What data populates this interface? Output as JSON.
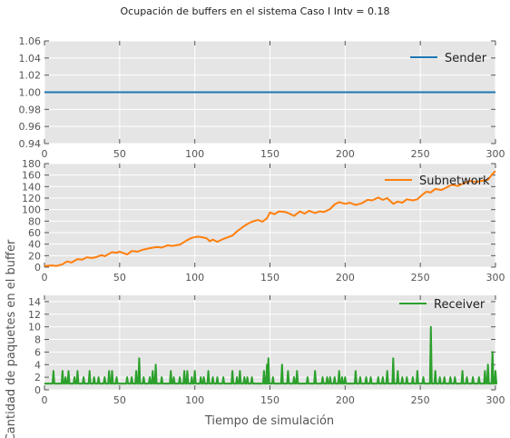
{
  "figure": {
    "title": "Ocupación de buffers en el sistema Caso I Intv = 0.18",
    "xlabel": "Tiempo de simulación",
    "ylabel": "Cantidad de paquetes en el buffer"
  },
  "chart_data": [
    {
      "type": "line",
      "series": [
        {
          "name": "Sender",
          "color": "#1f77b4",
          "values": [
            [
              0,
              1
            ],
            [
              300,
              1
            ]
          ]
        }
      ],
      "xlim": [
        0,
        300
      ],
      "ylim": [
        0.94,
        1.06
      ],
      "xticks": [
        0,
        50,
        100,
        150,
        200,
        250,
        300
      ],
      "yticks": [
        0.94,
        0.96,
        0.98,
        1.0,
        1.02,
        1.04,
        1.06
      ],
      "ytick_labels": [
        "0.94",
        "0.96",
        "0.98",
        "1.00",
        "1.02",
        "1.04",
        "1.06"
      ],
      "grid": true,
      "legend": "upper-right"
    },
    {
      "type": "line",
      "series": [
        {
          "name": "Subnetwork",
          "color": "#ff7f0e",
          "values": [
            [
              0,
              2
            ],
            [
              5,
              3
            ],
            [
              8,
              2
            ],
            [
              12,
              5
            ],
            [
              15,
              10
            ],
            [
              18,
              8
            ],
            [
              22,
              14
            ],
            [
              25,
              13
            ],
            [
              28,
              17
            ],
            [
              32,
              16
            ],
            [
              35,
              18
            ],
            [
              38,
              21
            ],
            [
              40,
              19
            ],
            [
              42,
              22
            ],
            [
              45,
              26
            ],
            [
              48,
              25
            ],
            [
              50,
              27
            ],
            [
              55,
              22
            ],
            [
              58,
              28
            ],
            [
              62,
              27
            ],
            [
              65,
              30
            ],
            [
              70,
              33
            ],
            [
              75,
              35
            ],
            [
              78,
              34
            ],
            [
              82,
              38
            ],
            [
              85,
              37
            ],
            [
              90,
              39
            ],
            [
              95,
              47
            ],
            [
              98,
              51
            ],
            [
              102,
              53
            ],
            [
              105,
              52
            ],
            [
              108,
              50
            ],
            [
              110,
              45
            ],
            [
              112,
              48
            ],
            [
              115,
              44
            ],
            [
              118,
              48
            ],
            [
              122,
              52
            ],
            [
              125,
              55
            ],
            [
              128,
              62
            ],
            [
              132,
              70
            ],
            [
              135,
              75
            ],
            [
              138,
              79
            ],
            [
              142,
              82
            ],
            [
              145,
              79
            ],
            [
              148,
              85
            ],
            [
              150,
              95
            ],
            [
              153,
              92
            ],
            [
              156,
              97
            ],
            [
              160,
              96
            ],
            [
              163,
              93
            ],
            [
              166,
              89
            ],
            [
              170,
              97
            ],
            [
              173,
              93
            ],
            [
              176,
              98
            ],
            [
              180,
              94
            ],
            [
              183,
              97
            ],
            [
              186,
              96
            ],
            [
              190,
              101
            ],
            [
              193,
              109
            ],
            [
              196,
              113
            ],
            [
              200,
              110
            ],
            [
              203,
              112
            ],
            [
              207,
              108
            ],
            [
              211,
              111
            ],
            [
              215,
              117
            ],
            [
              218,
              116
            ],
            [
              222,
              121
            ],
            [
              225,
              117
            ],
            [
              228,
              120
            ],
            [
              232,
              110
            ],
            [
              235,
              114
            ],
            [
              238,
              112
            ],
            [
              241,
              118
            ],
            [
              245,
              116
            ],
            [
              248,
              118
            ],
            [
              251,
              125
            ],
            [
              254,
              131
            ],
            [
              257,
              130
            ],
            [
              260,
              136
            ],
            [
              264,
              134
            ],
            [
              267,
              138
            ],
            [
              271,
              143
            ],
            [
              275,
              141
            ],
            [
              279,
              146
            ],
            [
              283,
              150
            ],
            [
              287,
              148
            ],
            [
              291,
              150
            ],
            [
              295,
              152
            ],
            [
              298,
              162
            ],
            [
              300,
              167
            ]
          ]
        }
      ],
      "xlim": [
        0,
        300
      ],
      "ylim": [
        0,
        180
      ],
      "xticks": [
        0,
        50,
        100,
        150,
        200,
        250,
        300
      ],
      "yticks": [
        0,
        20,
        40,
        60,
        80,
        100,
        120,
        140,
        160,
        180
      ],
      "ytick_labels": [
        "0",
        "20",
        "40",
        "60",
        "80",
        "100",
        "120",
        "140",
        "160",
        "180"
      ],
      "grid": true,
      "legend": "upper-right"
    },
    {
      "type": "line",
      "series": [
        {
          "name": "Receiver",
          "color": "#2ca02c",
          "baseline": 1,
          "spikes": [
            [
              6,
              3
            ],
            [
              12,
              3
            ],
            [
              14,
              2
            ],
            [
              16,
              3
            ],
            [
              20,
              2
            ],
            [
              22,
              3
            ],
            [
              26,
              2
            ],
            [
              30,
              3
            ],
            [
              33,
              2
            ],
            [
              36,
              2
            ],
            [
              40,
              2
            ],
            [
              43,
              3
            ],
            [
              45,
              3
            ],
            [
              48,
              2
            ],
            [
              55,
              2
            ],
            [
              58,
              2
            ],
            [
              61,
              3
            ],
            [
              63,
              5
            ],
            [
              66,
              2
            ],
            [
              70,
              2
            ],
            [
              72,
              3
            ],
            [
              74,
              4
            ],
            [
              78,
              2
            ],
            [
              84,
              3
            ],
            [
              86,
              2
            ],
            [
              90,
              2
            ],
            [
              93,
              3
            ],
            [
              95,
              3
            ],
            [
              98,
              2
            ],
            [
              100,
              3
            ],
            [
              104,
              2
            ],
            [
              106,
              2
            ],
            [
              109,
              3
            ],
            [
              112,
              2
            ],
            [
              115,
              2
            ],
            [
              119,
              2
            ],
            [
              125,
              3
            ],
            [
              128,
              2
            ],
            [
              130,
              3
            ],
            [
              133,
              2
            ],
            [
              135,
              2
            ],
            [
              138,
              2
            ],
            [
              146,
              3
            ],
            [
              148,
              4
            ],
            [
              149,
              5
            ],
            [
              152,
              2
            ],
            [
              158,
              4
            ],
            [
              162,
              3
            ],
            [
              166,
              2
            ],
            [
              168,
              3
            ],
            [
              175,
              2
            ],
            [
              180,
              3
            ],
            [
              185,
              2
            ],
            [
              188,
              2
            ],
            [
              190,
              2
            ],
            [
              193,
              2
            ],
            [
              196,
              3
            ],
            [
              198,
              2
            ],
            [
              200,
              2
            ],
            [
              207,
              3
            ],
            [
              210,
              2
            ],
            [
              214,
              2
            ],
            [
              217,
              2
            ],
            [
              222,
              2
            ],
            [
              225,
              2
            ],
            [
              228,
              3
            ],
            [
              232,
              5
            ],
            [
              235,
              3
            ],
            [
              238,
              2
            ],
            [
              241,
              2
            ],
            [
              245,
              2
            ],
            [
              248,
              3
            ],
            [
              252,
              2
            ],
            [
              257,
              10
            ],
            [
              260,
              3
            ],
            [
              263,
              2
            ],
            [
              266,
              2
            ],
            [
              270,
              2
            ],
            [
              273,
              2
            ],
            [
              278,
              3
            ],
            [
              281,
              2
            ],
            [
              285,
              2
            ],
            [
              289,
              2
            ],
            [
              293,
              3
            ],
            [
              295,
              4
            ],
            [
              298,
              6
            ],
            [
              300,
              3
            ]
          ]
        }
      ],
      "xlim": [
        0,
        300
      ],
      "ylim": [
        0,
        15
      ],
      "xticks": [
        0,
        50,
        100,
        150,
        200,
        250,
        300
      ],
      "yticks": [
        0,
        2,
        4,
        6,
        8,
        10,
        12,
        14
      ],
      "ytick_labels": [
        "0",
        "2",
        "4",
        "6",
        "8",
        "10",
        "12",
        "14"
      ],
      "grid": true,
      "legend": "upper-right"
    }
  ]
}
